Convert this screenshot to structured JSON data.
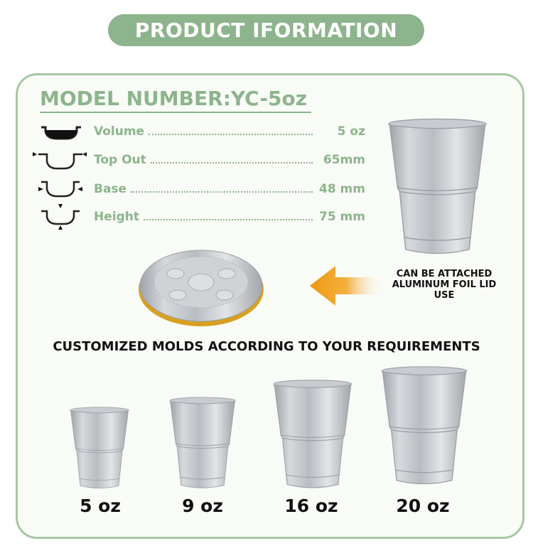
{
  "title": "PRODUCT IFORMATION",
  "model": "MODEL NUMBER:YC-5oz",
  "specs": [
    {
      "label": "Volume",
      "value": "5 oz",
      "icon": "volume-icon"
    },
    {
      "label": "Top Out",
      "value": "65mm",
      "icon": "top-diameter-icon"
    },
    {
      "label": "Base",
      "value": "48 mm",
      "icon": "base-diameter-icon"
    },
    {
      "label": "Height",
      "value": "75 mm",
      "icon": "height-icon"
    }
  ],
  "attach_note": [
    "CAN BE ATTACHED",
    "ALUMINUM FOIL LID",
    "USE"
  ],
  "molds_heading": "CUSTOMIZED MOLDS ACCORDING TO YOUR REQUIREMENTS",
  "sizes": [
    "5 oz",
    "9 oz",
    "16 oz",
    "20 oz"
  ],
  "colors": {
    "green": "#8db48c",
    "border": "#a7c7a4",
    "arrow": "#f0a020",
    "lid_rim": "#d8a020"
  }
}
